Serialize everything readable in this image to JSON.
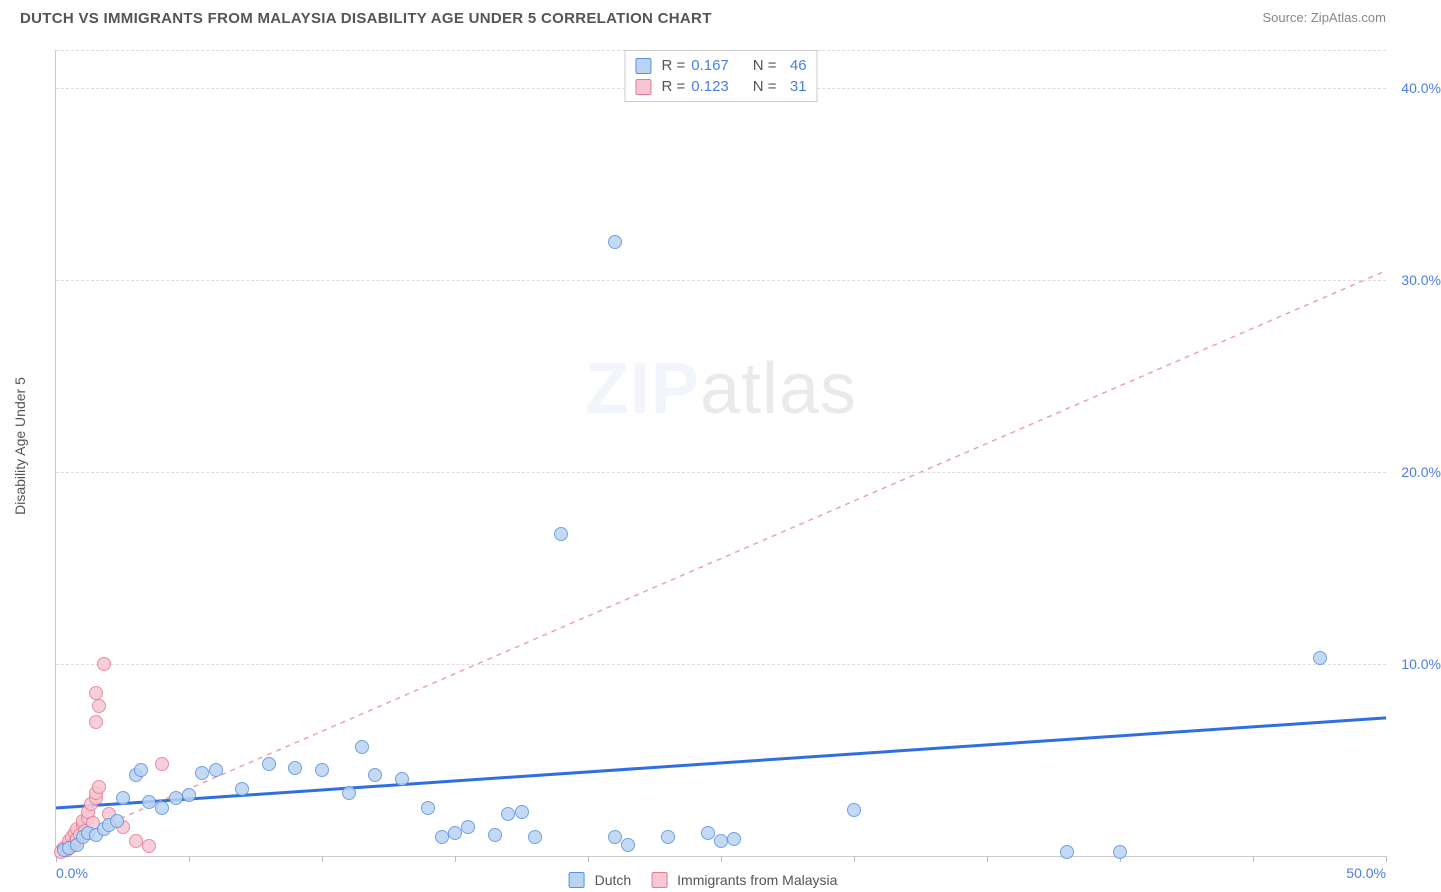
{
  "header": {
    "title": "DUTCH VS IMMIGRANTS FROM MALAYSIA DISABILITY AGE UNDER 5 CORRELATION CHART",
    "source_prefix": "Source: ",
    "source_name": "ZipAtlas.com"
  },
  "watermark": {
    "zip": "ZIP",
    "atlas": "atlas"
  },
  "chart": {
    "type": "scatter",
    "y_axis_label": "Disability Age Under 5",
    "xlim": [
      0,
      50
    ],
    "ylim": [
      0,
      42
    ],
    "x_ticks": [
      0,
      5,
      10,
      15,
      20,
      25,
      30,
      35,
      40,
      45,
      50
    ],
    "x_tick_labels_shown": {
      "0": "0.0%",
      "50": "50.0%"
    },
    "y_ticks": [
      10,
      20,
      30,
      40
    ],
    "y_tick_labels": {
      "10": "10.0%",
      "20": "20.0%",
      "30": "30.0%",
      "40": "40.0%"
    },
    "grid_color": "#dddddd",
    "background_color": "#ffffff",
    "axis_color": "#cccccc",
    "tick_label_color": "#4a7fe0",
    "x_zero_label_color": "#4a7fe0",
    "label_fontsize": 14,
    "marker_radius": 7,
    "series": [
      {
        "name": "Dutch",
        "legend_label": "Dutch",
        "color_fill": "#b9d3f3",
        "color_stroke": "#5a93db",
        "r_value": "0.167",
        "n_value": "46",
        "trend": {
          "x1": 0,
          "y1": 2.5,
          "x2": 50,
          "y2": 7.2,
          "stroke": "#2f6fe0",
          "width": 3,
          "dash": "none"
        },
        "points": [
          [
            0.3,
            0.3
          ],
          [
            0.5,
            0.4
          ],
          [
            0.8,
            0.6
          ],
          [
            1.0,
            1.0
          ],
          [
            1.2,
            1.2
          ],
          [
            1.5,
            1.1
          ],
          [
            1.8,
            1.4
          ],
          [
            2.0,
            1.6
          ],
          [
            2.3,
            1.8
          ],
          [
            2.5,
            3.0
          ],
          [
            3.0,
            4.2
          ],
          [
            3.2,
            4.5
          ],
          [
            3.5,
            2.8
          ],
          [
            4.0,
            2.5
          ],
          [
            4.5,
            3.0
          ],
          [
            5.0,
            3.2
          ],
          [
            5.5,
            4.3
          ],
          [
            6.0,
            4.5
          ],
          [
            7.0,
            3.5
          ],
          [
            8.0,
            4.8
          ],
          [
            9.0,
            4.6
          ],
          [
            10.0,
            4.5
          ],
          [
            11.0,
            3.3
          ],
          [
            11.5,
            5.7
          ],
          [
            12.0,
            4.2
          ],
          [
            13.0,
            4.0
          ],
          [
            14.0,
            2.5
          ],
          [
            14.5,
            1.0
          ],
          [
            15.0,
            1.2
          ],
          [
            15.5,
            1.5
          ],
          [
            16.5,
            1.1
          ],
          [
            17.0,
            2.2
          ],
          [
            17.5,
            2.3
          ],
          [
            18.0,
            1.0
          ],
          [
            21.0,
            1.0
          ],
          [
            21.5,
            0.6
          ],
          [
            23.0,
            1.0
          ],
          [
            24.5,
            1.2
          ],
          [
            25.0,
            0.8
          ],
          [
            25.5,
            0.9
          ],
          [
            30.0,
            2.4
          ],
          [
            19.0,
            16.8
          ],
          [
            21.0,
            32.0
          ],
          [
            38.0,
            0.2
          ],
          [
            40.0,
            0.2
          ],
          [
            47.5,
            10.3
          ]
        ]
      },
      {
        "name": "Immigrants from Malaysia",
        "legend_label": "Immigrants from Malaysia",
        "color_fill": "#f6c7d2",
        "color_stroke": "#e77a99",
        "r_value": "0.123",
        "n_value": "31",
        "trend": {
          "x1": 0,
          "y1": 0.5,
          "x2": 50,
          "y2": 30.5,
          "stroke": "#e9a3b5",
          "width": 1.5,
          "dash": "5,5"
        },
        "points": [
          [
            0.2,
            0.2
          ],
          [
            0.3,
            0.4
          ],
          [
            0.4,
            0.3
          ],
          [
            0.5,
            0.6
          ],
          [
            0.5,
            0.8
          ],
          [
            0.6,
            0.5
          ],
          [
            0.6,
            1.0
          ],
          [
            0.7,
            0.7
          ],
          [
            0.7,
            1.2
          ],
          [
            0.8,
            0.9
          ],
          [
            0.8,
            1.4
          ],
          [
            0.9,
            1.1
          ],
          [
            1.0,
            1.6
          ],
          [
            1.0,
            1.8
          ],
          [
            1.1,
            1.3
          ],
          [
            1.2,
            2.0
          ],
          [
            1.2,
            2.3
          ],
          [
            1.3,
            2.7
          ],
          [
            1.4,
            1.7
          ],
          [
            1.5,
            3.0
          ],
          [
            1.5,
            3.3
          ],
          [
            1.6,
            3.6
          ],
          [
            1.5,
            7.0
          ],
          [
            1.6,
            7.8
          ],
          [
            1.5,
            8.5
          ],
          [
            1.8,
            10.0
          ],
          [
            2.0,
            2.2
          ],
          [
            2.5,
            1.5
          ],
          [
            3.0,
            0.8
          ],
          [
            3.5,
            0.5
          ],
          [
            4.0,
            4.8
          ]
        ]
      }
    ],
    "legend_stats": {
      "label_r": "R = ",
      "label_n": "N = ",
      "text_color": "#555555",
      "value_color": "#4a7fe0"
    }
  }
}
